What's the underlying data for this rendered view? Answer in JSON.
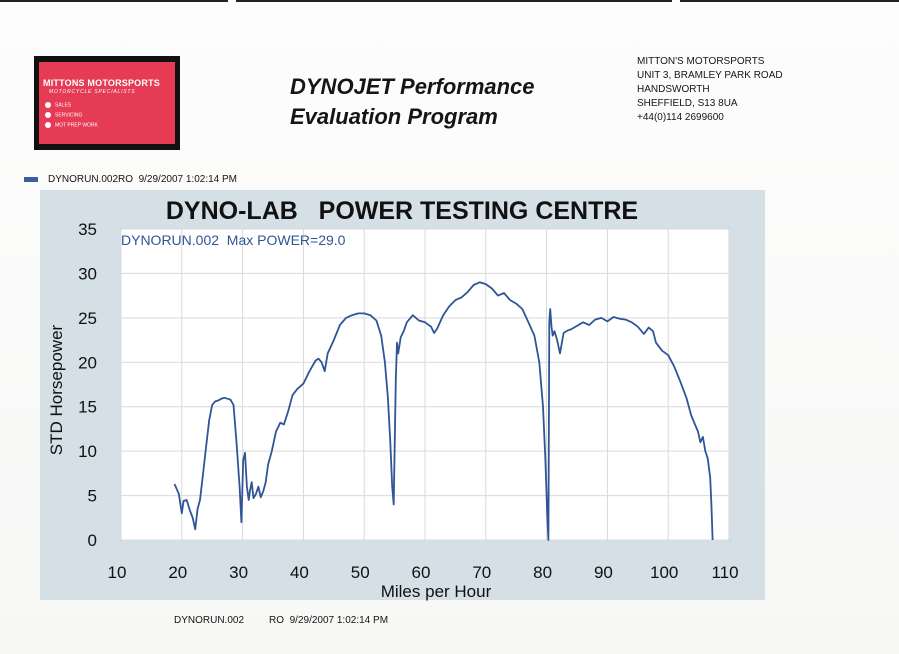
{
  "logo": {
    "name": "MITTONS MOTORSPORTS",
    "tagline": "MOTORCYCLE SPECIALISTS",
    "items": [
      "SALES",
      "SERVICING",
      "MOT PREP WORK"
    ],
    "color": "#e53b54"
  },
  "header": {
    "title_line1": "DYNOJET Performance",
    "title_line2": "Evaluation Program"
  },
  "address": {
    "lines": [
      "MITTON'S MOTORSPORTS",
      "UNIT 3, BRAMLEY PARK ROAD",
      "HANDSWORTH",
      "SHEFFIELD, S13 8UA",
      "+44(0)114 2699600"
    ]
  },
  "legend": {
    "run": "DYNORUN.002RO",
    "date": "9/29/2007 1:02:14 PM",
    "color": "#3a5fa0"
  },
  "chart_data": {
    "type": "line",
    "title": "DYNO-LAB   POWER TESTING CENTRE",
    "annotation": "DYNORUN.002  Max POWER=29.0",
    "xlabel": "Miles per Hour",
    "ylabel": "STD Horsepower",
    "xlim": [
      10,
      110
    ],
    "ylim": [
      0,
      35
    ],
    "xticks": [
      10,
      20,
      30,
      40,
      50,
      60,
      70,
      80,
      90,
      100,
      110
    ],
    "yticks": [
      0,
      5,
      10,
      15,
      20,
      25,
      30,
      35
    ],
    "grid": true,
    "line_color": "#2f5596",
    "plot_bg": "#ffffff",
    "frame_bg": "#d5dfe6",
    "series": [
      {
        "x": [
          18.8,
          19.5,
          20.0,
          20.3,
          20.8,
          21.3,
          21.8,
          22.2,
          22.6,
          23.0,
          23.5,
          24.0,
          24.5,
          25.0,
          25.5,
          26.0,
          26.5,
          27.0,
          27.5,
          28.0,
          28.5,
          29.0,
          29.5,
          29.8,
          30.1,
          30.4,
          30.7,
          31.0,
          31.2,
          31.5,
          31.8,
          32.2,
          32.6,
          33.0,
          33.4,
          33.8,
          34.2,
          34.8,
          35.5,
          36.2,
          36.8,
          37.5,
          38.2,
          39.0,
          40.0,
          41.0,
          42.0,
          42.5,
          43.0,
          43.5,
          44.0,
          45.0,
          46.0,
          47.0,
          48.0,
          49.0,
          50.0,
          51.0,
          52.0,
          52.8,
          53.4,
          53.9,
          54.3,
          54.6,
          54.85,
          55.0,
          55.2,
          55.4,
          55.6,
          56.0,
          56.5,
          57.0,
          58.0,
          59.0,
          60.0,
          61.0,
          61.5,
          62.0,
          63.0,
          64.0,
          65.0,
          66.0,
          67.0,
          68.0,
          69.0,
          70.0,
          71.0,
          72.0,
          73.0,
          74.0,
          75.0,
          76.0,
          77.0,
          78.0,
          78.8,
          79.4,
          79.8,
          80.1,
          80.3,
          80.45,
          80.6,
          80.8,
          81.0,
          81.3,
          81.7,
          82.2,
          82.8,
          83.5,
          84.0,
          85.0,
          86.0,
          87.0,
          88.0,
          89.0,
          90.0,
          91.0,
          92.0,
          93.0,
          94.0,
          95.0,
          96.0,
          96.8,
          97.5,
          98.0,
          99.0,
          100.0,
          101.0,
          102.0,
          103.0,
          103.8,
          104.4,
          104.9,
          105.3,
          105.7,
          106.1,
          106.5,
          106.9,
          107.1,
          107.3
        ],
        "y": [
          6.3,
          5.2,
          3.0,
          4.4,
          4.5,
          3.4,
          2.5,
          1.2,
          3.5,
          4.5,
          7.5,
          10.5,
          13.5,
          15.2,
          15.6,
          15.7,
          15.9,
          16.0,
          15.9,
          15.8,
          15.2,
          11.0,
          6.0,
          2.0,
          9.0,
          9.8,
          6.0,
          4.5,
          5.5,
          6.5,
          4.7,
          5.2,
          6.0,
          4.8,
          5.5,
          6.5,
          8.5,
          10.0,
          12.2,
          13.2,
          13.0,
          14.5,
          16.3,
          17.0,
          17.6,
          19.0,
          20.2,
          20.4,
          20.0,
          19.0,
          21.0,
          22.5,
          24.2,
          25.0,
          25.3,
          25.5,
          25.5,
          25.3,
          24.7,
          23.0,
          20.0,
          16.0,
          11.0,
          6.0,
          4.0,
          10.0,
          18.0,
          22.2,
          21.0,
          22.8,
          23.5,
          24.5,
          25.3,
          24.7,
          24.5,
          24.0,
          23.3,
          23.8,
          25.3,
          26.3,
          27.0,
          27.3,
          27.9,
          28.7,
          29.0,
          28.8,
          28.3,
          27.5,
          27.8,
          27.0,
          26.6,
          26.0,
          24.5,
          23.0,
          20.0,
          15.0,
          9.0,
          3.0,
          0.0,
          24.5,
          26.0,
          24.0,
          23.0,
          23.5,
          22.6,
          21.0,
          23.3,
          23.6,
          23.7,
          24.1,
          24.5,
          24.2,
          24.8,
          25.0,
          24.6,
          25.1,
          24.9,
          24.8,
          24.5,
          24.0,
          23.2,
          23.9,
          23.5,
          22.2,
          21.3,
          20.8,
          19.5,
          17.8,
          16.0,
          14.0,
          13.0,
          12.2,
          11.0,
          11.6,
          10.0,
          9.2,
          7.0,
          4.0,
          0.0
        ]
      }
    ]
  },
  "footer": {
    "run": "DYNORUN.002",
    "code": "RO",
    "date": "9/29/2007 1:02:14 PM"
  }
}
